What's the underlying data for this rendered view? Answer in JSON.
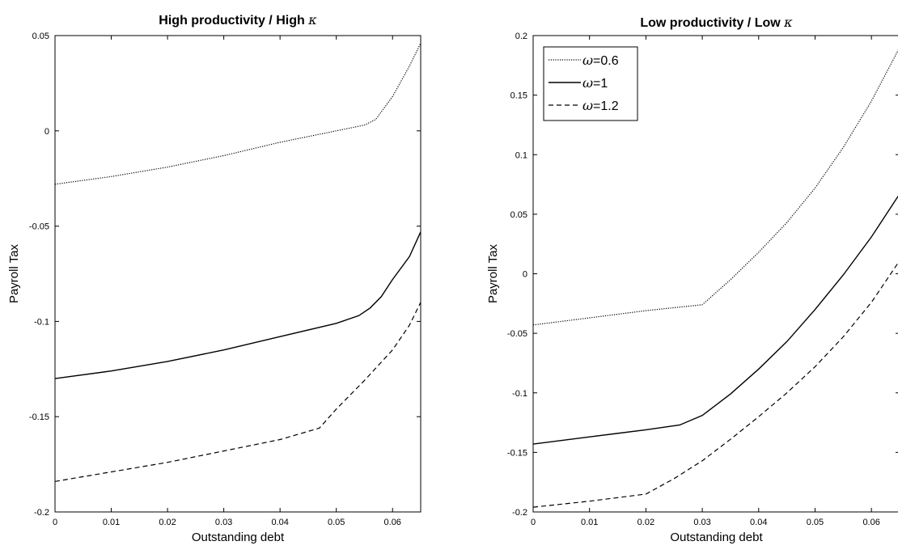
{
  "chart_data": [
    {
      "type": "line",
      "title": "High productivity / High ",
      "title_symbol": "κ",
      "xlabel": "Outstanding debt",
      "ylabel": "Payroll Tax",
      "xlim": [
        0,
        0.065
      ],
      "ylim": [
        -0.2,
        0.05
      ],
      "xticks": [
        0,
        0.01,
        0.02,
        0.03,
        0.04,
        0.05,
        0.06
      ],
      "xtick_labels": [
        "0",
        "0.01",
        "0.02",
        "0.03",
        "0.04",
        "0.05",
        "0.06"
      ],
      "yticks": [
        -0.2,
        -0.15,
        -0.1,
        -0.05,
        0,
        0.05
      ],
      "ytick_labels": [
        "-0.2",
        "-0.15",
        "-0.1",
        "-0.05",
        "0",
        "0.05"
      ],
      "grid": false,
      "series": [
        {
          "name": "ω=0.6",
          "style": "dotted",
          "x": [
            0,
            0.01,
            0.02,
            0.03,
            0.04,
            0.05,
            0.055,
            0.057,
            0.06,
            0.063,
            0.065
          ],
          "y": [
            -0.028,
            -0.024,
            -0.019,
            -0.013,
            -0.006,
            0.0,
            0.003,
            0.006,
            0.018,
            0.034,
            0.046
          ]
        },
        {
          "name": "ω=1",
          "style": "solid",
          "x": [
            0,
            0.01,
            0.02,
            0.03,
            0.04,
            0.05,
            0.054,
            0.056,
            0.058,
            0.06,
            0.063,
            0.065
          ],
          "y": [
            -0.13,
            -0.126,
            -0.121,
            -0.115,
            -0.108,
            -0.101,
            -0.097,
            -0.093,
            -0.087,
            -0.078,
            -0.066,
            -0.053
          ]
        },
        {
          "name": "ω=1.2",
          "style": "dashed",
          "x": [
            0,
            0.01,
            0.02,
            0.03,
            0.04,
            0.047,
            0.05,
            0.055,
            0.06,
            0.063,
            0.065
          ],
          "y": [
            -0.184,
            -0.179,
            -0.174,
            -0.168,
            -0.162,
            -0.156,
            -0.146,
            -0.131,
            -0.115,
            -0.102,
            -0.09
          ]
        }
      ]
    },
    {
      "type": "line",
      "title": "Low productivity / Low ",
      "title_symbol": "κ",
      "xlabel": "Outstanding debt",
      "ylabel": "Payroll Tax",
      "xlim": [
        0,
        0.065
      ],
      "ylim": [
        -0.2,
        0.2
      ],
      "xticks": [
        0,
        0.01,
        0.02,
        0.03,
        0.04,
        0.05,
        0.06
      ],
      "xtick_labels": [
        "0",
        "0.01",
        "0.02",
        "0.03",
        "0.04",
        "0.05",
        "0.06"
      ],
      "yticks": [
        -0.2,
        -0.15,
        -0.1,
        -0.05,
        0,
        0.05,
        0.1,
        0.15,
        0.2
      ],
      "ytick_labels": [
        "-0.2",
        "-0.15",
        "-0.1",
        "-0.05",
        "0",
        "0.05",
        "0.1",
        "0.15",
        "0.2"
      ],
      "grid": false,
      "legend": {
        "location": "top-left",
        "entries": [
          "ω=0.6",
          "ω=1",
          "ω=1.2"
        ]
      },
      "series": [
        {
          "name": "ω=0.6",
          "style": "dotted",
          "x": [
            0,
            0.01,
            0.02,
            0.03,
            0.035,
            0.04,
            0.045,
            0.05,
            0.055,
            0.06,
            0.065
          ],
          "y": [
            -0.043,
            -0.037,
            -0.031,
            -0.026,
            -0.005,
            0.018,
            0.043,
            0.072,
            0.106,
            0.145,
            0.19
          ]
        },
        {
          "name": "ω=1",
          "style": "solid",
          "x": [
            0,
            0.01,
            0.02,
            0.026,
            0.03,
            0.035,
            0.04,
            0.045,
            0.05,
            0.055,
            0.06,
            0.065
          ],
          "y": [
            -0.143,
            -0.137,
            -0.131,
            -0.127,
            -0.119,
            -0.101,
            -0.08,
            -0.057,
            -0.03,
            -0.001,
            0.031,
            0.067
          ]
        },
        {
          "name": "ω=1.2",
          "style": "dashed",
          "x": [
            0,
            0.01,
            0.02,
            0.025,
            0.03,
            0.035,
            0.04,
            0.045,
            0.05,
            0.055,
            0.06,
            0.065
          ],
          "y": [
            -0.196,
            -0.191,
            -0.185,
            -0.172,
            -0.157,
            -0.139,
            -0.12,
            -0.1,
            -0.078,
            -0.053,
            -0.024,
            0.011
          ]
        }
      ]
    }
  ]
}
